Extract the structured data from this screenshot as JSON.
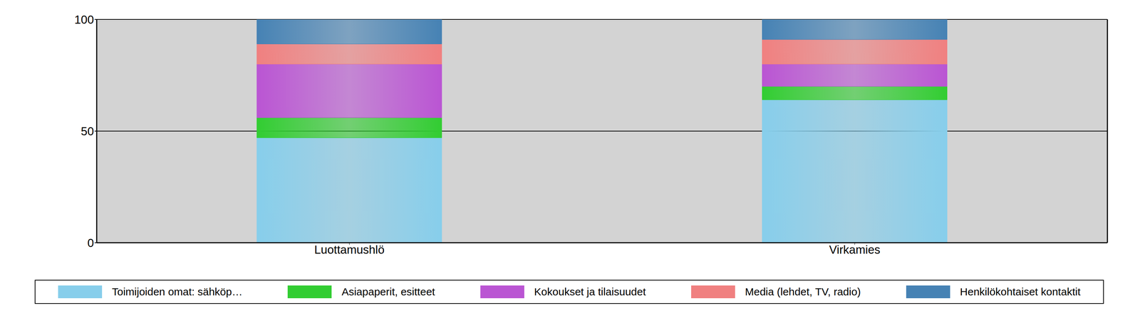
{
  "chart_data": {
    "type": "bar",
    "categories": [
      "Luottamushlö",
      "Virkamies"
    ],
    "series": [
      {
        "name": "Toimijoiden  omat: sähköp…",
        "color": "#87ceeb",
        "values": [
          47,
          64
        ]
      },
      {
        "name": "Asiapaperit, esitteet",
        "color": "#32cd32",
        "values": [
          9,
          6
        ]
      },
      {
        "name": "Kokoukset ja tilaisuudet",
        "color": "#ba55d3",
        "values": [
          24,
          10
        ]
      },
      {
        "name": "Media (lehdet, TV, radio)",
        "color": "#f08080",
        "values": [
          9,
          11
        ]
      },
      {
        "name": "Henkilökohtaiset kontaktit",
        "color": "#4682b4",
        "values": [
          11,
          9
        ]
      }
    ],
    "ylim": [
      0,
      100
    ],
    "yticks": [
      0,
      50,
      100
    ],
    "stacked": true,
    "grid": true
  }
}
